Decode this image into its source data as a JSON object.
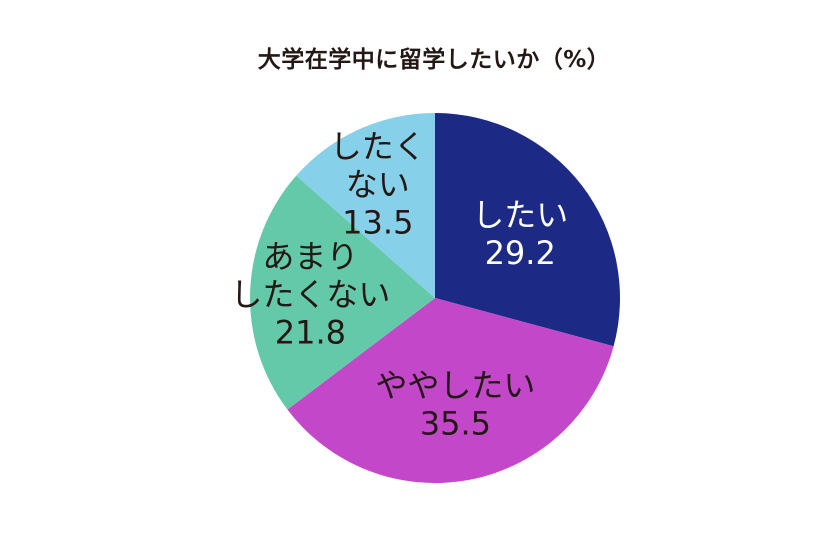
{
  "chart_data": {
    "type": "pie",
    "title": "大学在学中に留学したいか（%）",
    "slices": [
      {
        "label_lines": [
          "したい"
        ],
        "value": 29.2,
        "value_text": "29.2",
        "color": "#1c2a85",
        "text_color": "#ffffff"
      },
      {
        "label_lines": [
          "ややしたい"
        ],
        "value": 35.5,
        "value_text": "35.5",
        "color": "#c348c9",
        "text_color": "#231815"
      },
      {
        "label_lines": [
          "あまり",
          "したくない"
        ],
        "value": 21.8,
        "value_text": "21.8",
        "color": "#63c9a8",
        "text_color": "#231815"
      },
      {
        "label_lines": [
          "したく",
          "ない"
        ],
        "value": 13.5,
        "value_text": "13.5",
        "color": "#87d0ea",
        "text_color": "#231815"
      }
    ],
    "start": "12 o'clock",
    "direction": "clockwise",
    "legend": "none"
  }
}
